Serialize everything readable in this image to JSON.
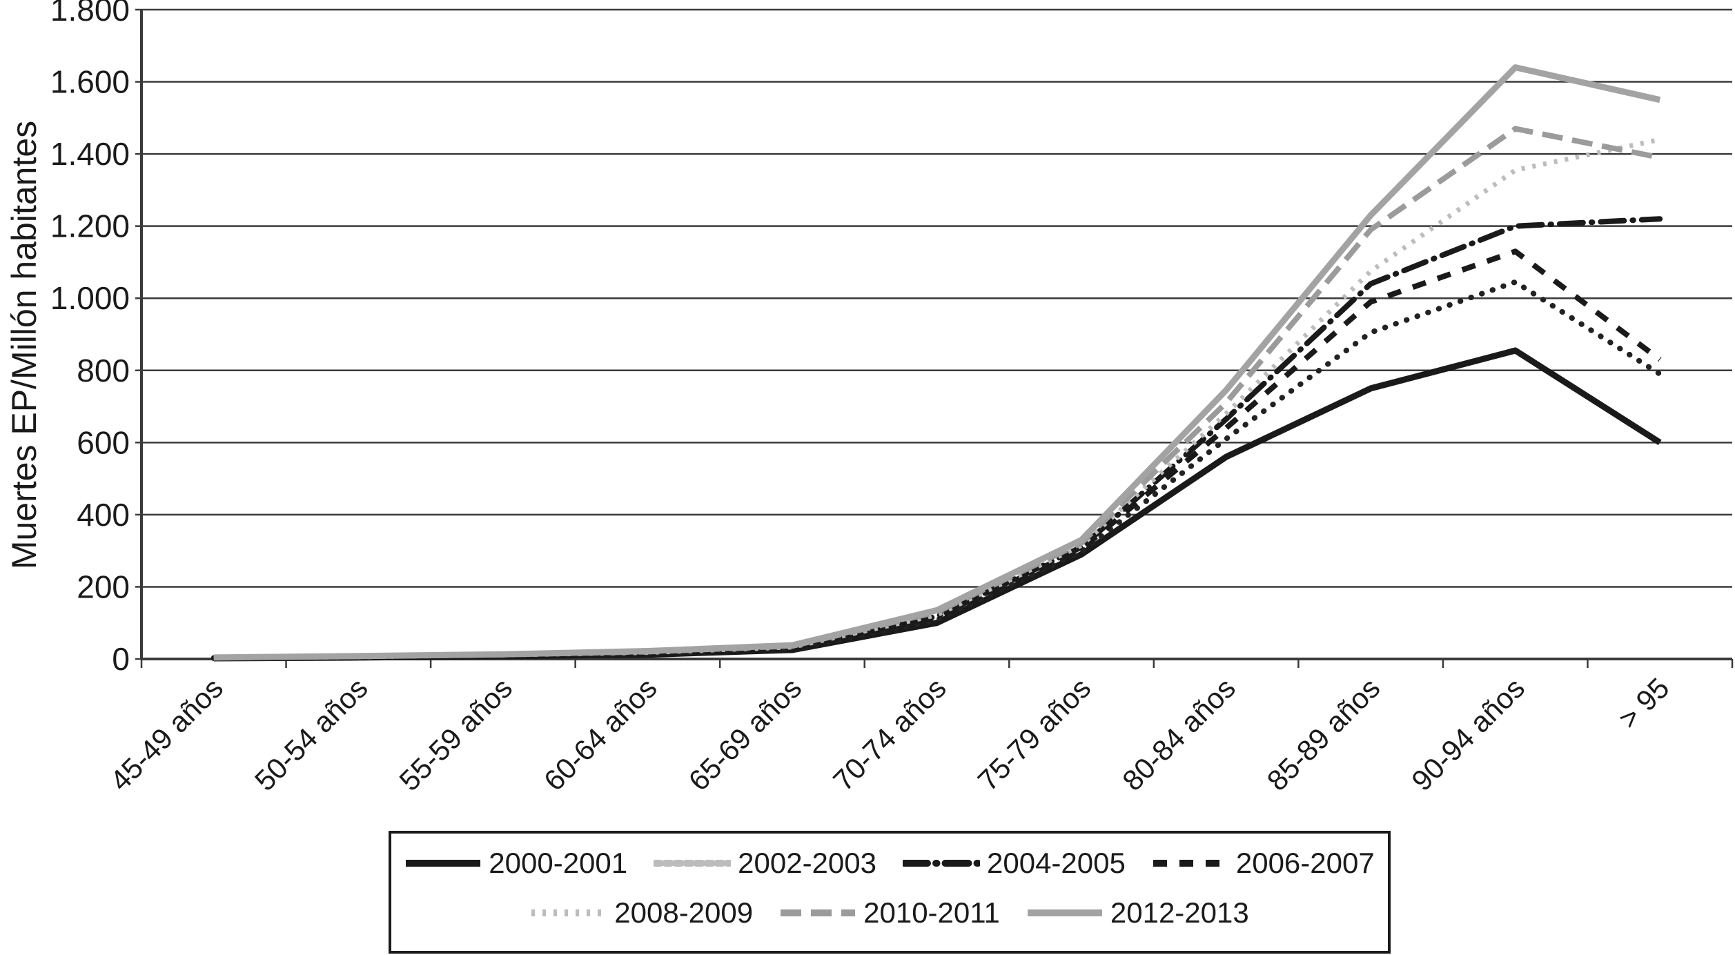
{
  "figure": {
    "background": "#ffffff",
    "text_color": "#1a1a1a",
    "gridline_color": "#3a3a3a"
  },
  "chart_data": {
    "type": "line",
    "title": "",
    "xlabel": "",
    "ylabel": "Muertes EP/Millón habitantes",
    "ylim": [
      0,
      1800
    ],
    "ytick_step": 200,
    "ytick_labels": [
      "0",
      "200",
      "400",
      "600",
      "800",
      "1.000",
      "1.200",
      "1.400",
      "1.600",
      "1.800"
    ],
    "grid": "horizontal",
    "legend_position": "bottom",
    "categories": [
      "45-49 años",
      "50-54 años",
      "55-59 años",
      "60-64 años",
      "65-69 años",
      "70-74 años",
      "75-79 años",
      "80-84 años",
      "85-89 años",
      "90-94 años",
      "> 95"
    ],
    "series": [
      {
        "name": "2000-2001",
        "color": "#1a1a1a",
        "width": 9,
        "dash": "",
        "linecap": "butt",
        "values": [
          2,
          4,
          8,
          12,
          25,
          100,
          290,
          560,
          750,
          855,
          600
        ]
      },
      {
        "name": "2002-2003",
        "color": "#222222",
        "legend_color": "#bcbcbc",
        "width": 8,
        "dash": "0.5 16",
        "legend_dash": "8 7",
        "linecap": "round",
        "values": [
          2,
          5,
          9,
          14,
          28,
          108,
          298,
          610,
          905,
          1045,
          790
        ]
      },
      {
        "name": "2004-2005",
        "color": "#1a1a1a",
        "width": 8,
        "dash": "34 12 1.5 12",
        "linecap": "round",
        "values": [
          3,
          5,
          10,
          16,
          30,
          118,
          310,
          665,
          1040,
          1200,
          1220
        ]
      },
      {
        "name": "2006-2007",
        "color": "#1a1a1a",
        "width": 8,
        "dash": "20 18",
        "linecap": "butt",
        "values": [
          3,
          6,
          10,
          17,
          32,
          115,
          305,
          640,
          990,
          1130,
          830
        ]
      },
      {
        "name": "2008-2009",
        "color": "#bcbcbc",
        "width": 7,
        "dash": "5 11",
        "linecap": "butt",
        "values": [
          3,
          6,
          11,
          18,
          33,
          122,
          315,
          680,
          1075,
          1355,
          1440
        ]
      },
      {
        "name": "2010-2011",
        "color": "#9b9b9b",
        "width": 8,
        "dash": "30 14",
        "linecap": "butt",
        "values": [
          4,
          7,
          12,
          20,
          36,
          130,
          322,
          710,
          1190,
          1470,
          1390
        ]
      },
      {
        "name": "2012-2013",
        "color": "#a3a3a3",
        "width": 9,
        "dash": "",
        "linecap": "butt",
        "values": [
          4,
          8,
          13,
          22,
          38,
          135,
          330,
          745,
          1230,
          1640,
          1550
        ]
      }
    ],
    "legend_rows": [
      [
        0,
        1,
        2,
        3
      ],
      [
        4,
        5,
        6
      ]
    ]
  }
}
